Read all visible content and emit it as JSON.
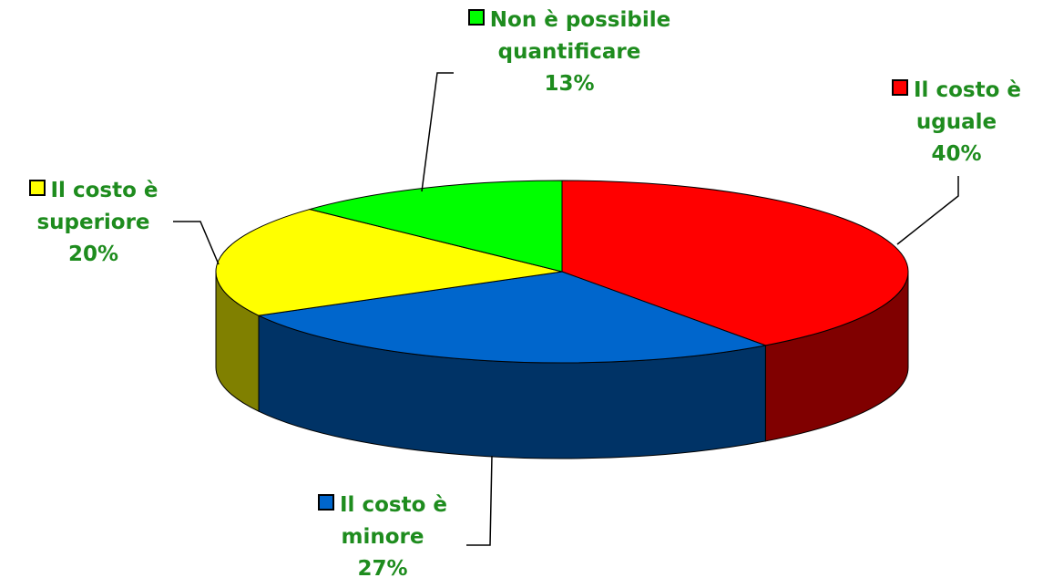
{
  "chart_data": {
    "type": "pie",
    "categories": [
      "Il costo è uguale",
      "Il costo è minore",
      "Il costo è superiore",
      "Non è possibile quantificare"
    ],
    "values": [
      40,
      27,
      20,
      13
    ],
    "value_labels": [
      "40%",
      "27%",
      "20%",
      "13%"
    ],
    "colors": [
      "#ff0000",
      "#0066cc",
      "#ffff00",
      "#00ff00"
    ],
    "side_colors": [
      "#800000",
      "#003366",
      "#808000",
      "#008000"
    ]
  }
}
